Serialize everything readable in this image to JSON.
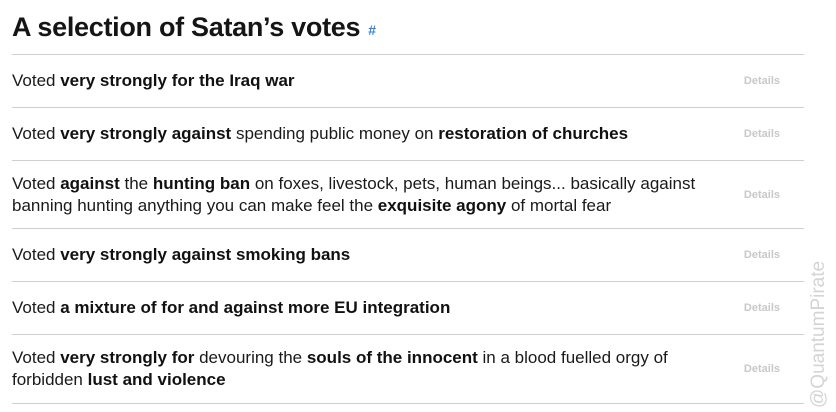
{
  "header": {
    "title": "A selection of Satan’s votes",
    "anchor": "#"
  },
  "votes": [
    {
      "segments": [
        {
          "text": "Voted ",
          "bold": false
        },
        {
          "text": "very strongly for the Iraq war",
          "bold": true
        }
      ],
      "details_label": "Details"
    },
    {
      "segments": [
        {
          "text": "Voted ",
          "bold": false
        },
        {
          "text": "very strongly against",
          "bold": true
        },
        {
          "text": " spending public money on ",
          "bold": false
        },
        {
          "text": "restoration of churches",
          "bold": true
        }
      ],
      "details_label": "Details"
    },
    {
      "segments": [
        {
          "text": "Voted ",
          "bold": false
        },
        {
          "text": "against",
          "bold": true
        },
        {
          "text": " the  ",
          "bold": false
        },
        {
          "text": "hunting ban",
          "bold": true
        },
        {
          "text": " on foxes, livestock, pets, human beings... basically against banning hunting anything you can make feel the ",
          "bold": false
        },
        {
          "text": "exquisite agony",
          "bold": true
        },
        {
          "text": " of mortal fear",
          "bold": false
        }
      ],
      "details_label": "Details"
    },
    {
      "segments": [
        {
          "text": "Voted ",
          "bold": false
        },
        {
          "text": "very strongly against smoking bans",
          "bold": true
        }
      ],
      "details_label": "Details"
    },
    {
      "segments": [
        {
          "text": "Voted ",
          "bold": false
        },
        {
          "text": "a mixture of for and against more EU integration",
          "bold": true
        }
      ],
      "details_label": "Details"
    },
    {
      "segments": [
        {
          "text": "Voted ",
          "bold": false
        },
        {
          "text": "very strongly for",
          "bold": true
        },
        {
          "text": " devouring the ",
          "bold": false
        },
        {
          "text": "souls of the innocent",
          "bold": true
        },
        {
          "text": "  in a blood fuelled orgy of forbidden ",
          "bold": false
        },
        {
          "text": "lust and violence",
          "bold": true
        }
      ],
      "details_label": "Details"
    }
  ],
  "watermark": "@QuantumPirate",
  "colors": {
    "anchor": "#3a7fd0",
    "details": "#c8c8c8",
    "divider": "#cfcfcf",
    "watermark": "#d4d4d4"
  }
}
